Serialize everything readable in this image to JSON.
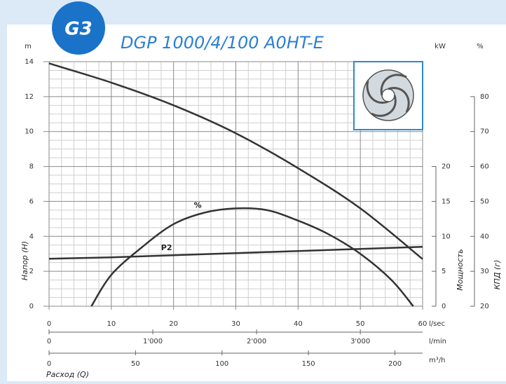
{
  "chart_data": {
    "type": "line",
    "title": "DGP 1000/4/100 A0HT-E",
    "badge": "G3",
    "xlabel": "Расход (Q)",
    "x_unit": "l/sec",
    "x2_unit": "l/min",
    "x3_unit": "m³/h",
    "ylabel": "Напор (H)",
    "y_unit": "m",
    "y2label": "Мощность",
    "y2_unit": "kW",
    "y3label": "КПД (г)",
    "y3_unit": "%",
    "xlim": [
      0,
      60
    ],
    "xticks": [
      0,
      10,
      20,
      30,
      40,
      50,
      60
    ],
    "x2lim": [
      0,
      3600
    ],
    "x2ticks": [
      0,
      {
        "value": 1000,
        "label": "1'000"
      },
      {
        "value": 2000,
        "label": "2'000"
      },
      {
        "value": 3000,
        "label": "3'000"
      }
    ],
    "x3lim": [
      0,
      216
    ],
    "x3ticks": [
      0,
      50,
      100,
      150,
      200
    ],
    "ylim": [
      0,
      14
    ],
    "yticks": [
      0,
      2,
      4,
      6,
      8,
      10,
      12,
      14
    ],
    "y2lim": [
      0,
      35
    ],
    "y2ticks": [
      0,
      5,
      10,
      15,
      20
    ],
    "y3lim": [
      20,
      90
    ],
    "y3ticks": [
      20,
      30,
      40,
      50,
      60,
      70,
      80
    ],
    "grid": true,
    "series": [
      {
        "color": "#333333",
        "x": [
          0,
          10,
          20,
          30,
          40,
          50,
          60
        ],
        "values": [
          13.9,
          12.8,
          11.5,
          9.9,
          7.9,
          5.6,
          2.7
        ]
      },
      {
        "name": "%",
        "axis": "y3",
        "color": "#333333",
        "x": [
          6.8,
          10,
          15,
          20,
          25,
          30,
          35,
          40,
          45,
          50,
          55,
          58.5
        ],
        "values": [
          20,
          29,
          37,
          43.5,
          46.8,
          48,
          47.5,
          44.5,
          40.5,
          35,
          27.5,
          20
        ]
      },
      {
        "name": "P2",
        "axis": "y2",
        "color": "#333333",
        "x": [
          0,
          10,
          20,
          30,
          40,
          50,
          60
        ],
        "values": [
          6.8,
          7.0,
          7.3,
          7.6,
          7.9,
          8.2,
          8.5
        ]
      }
    ]
  }
}
